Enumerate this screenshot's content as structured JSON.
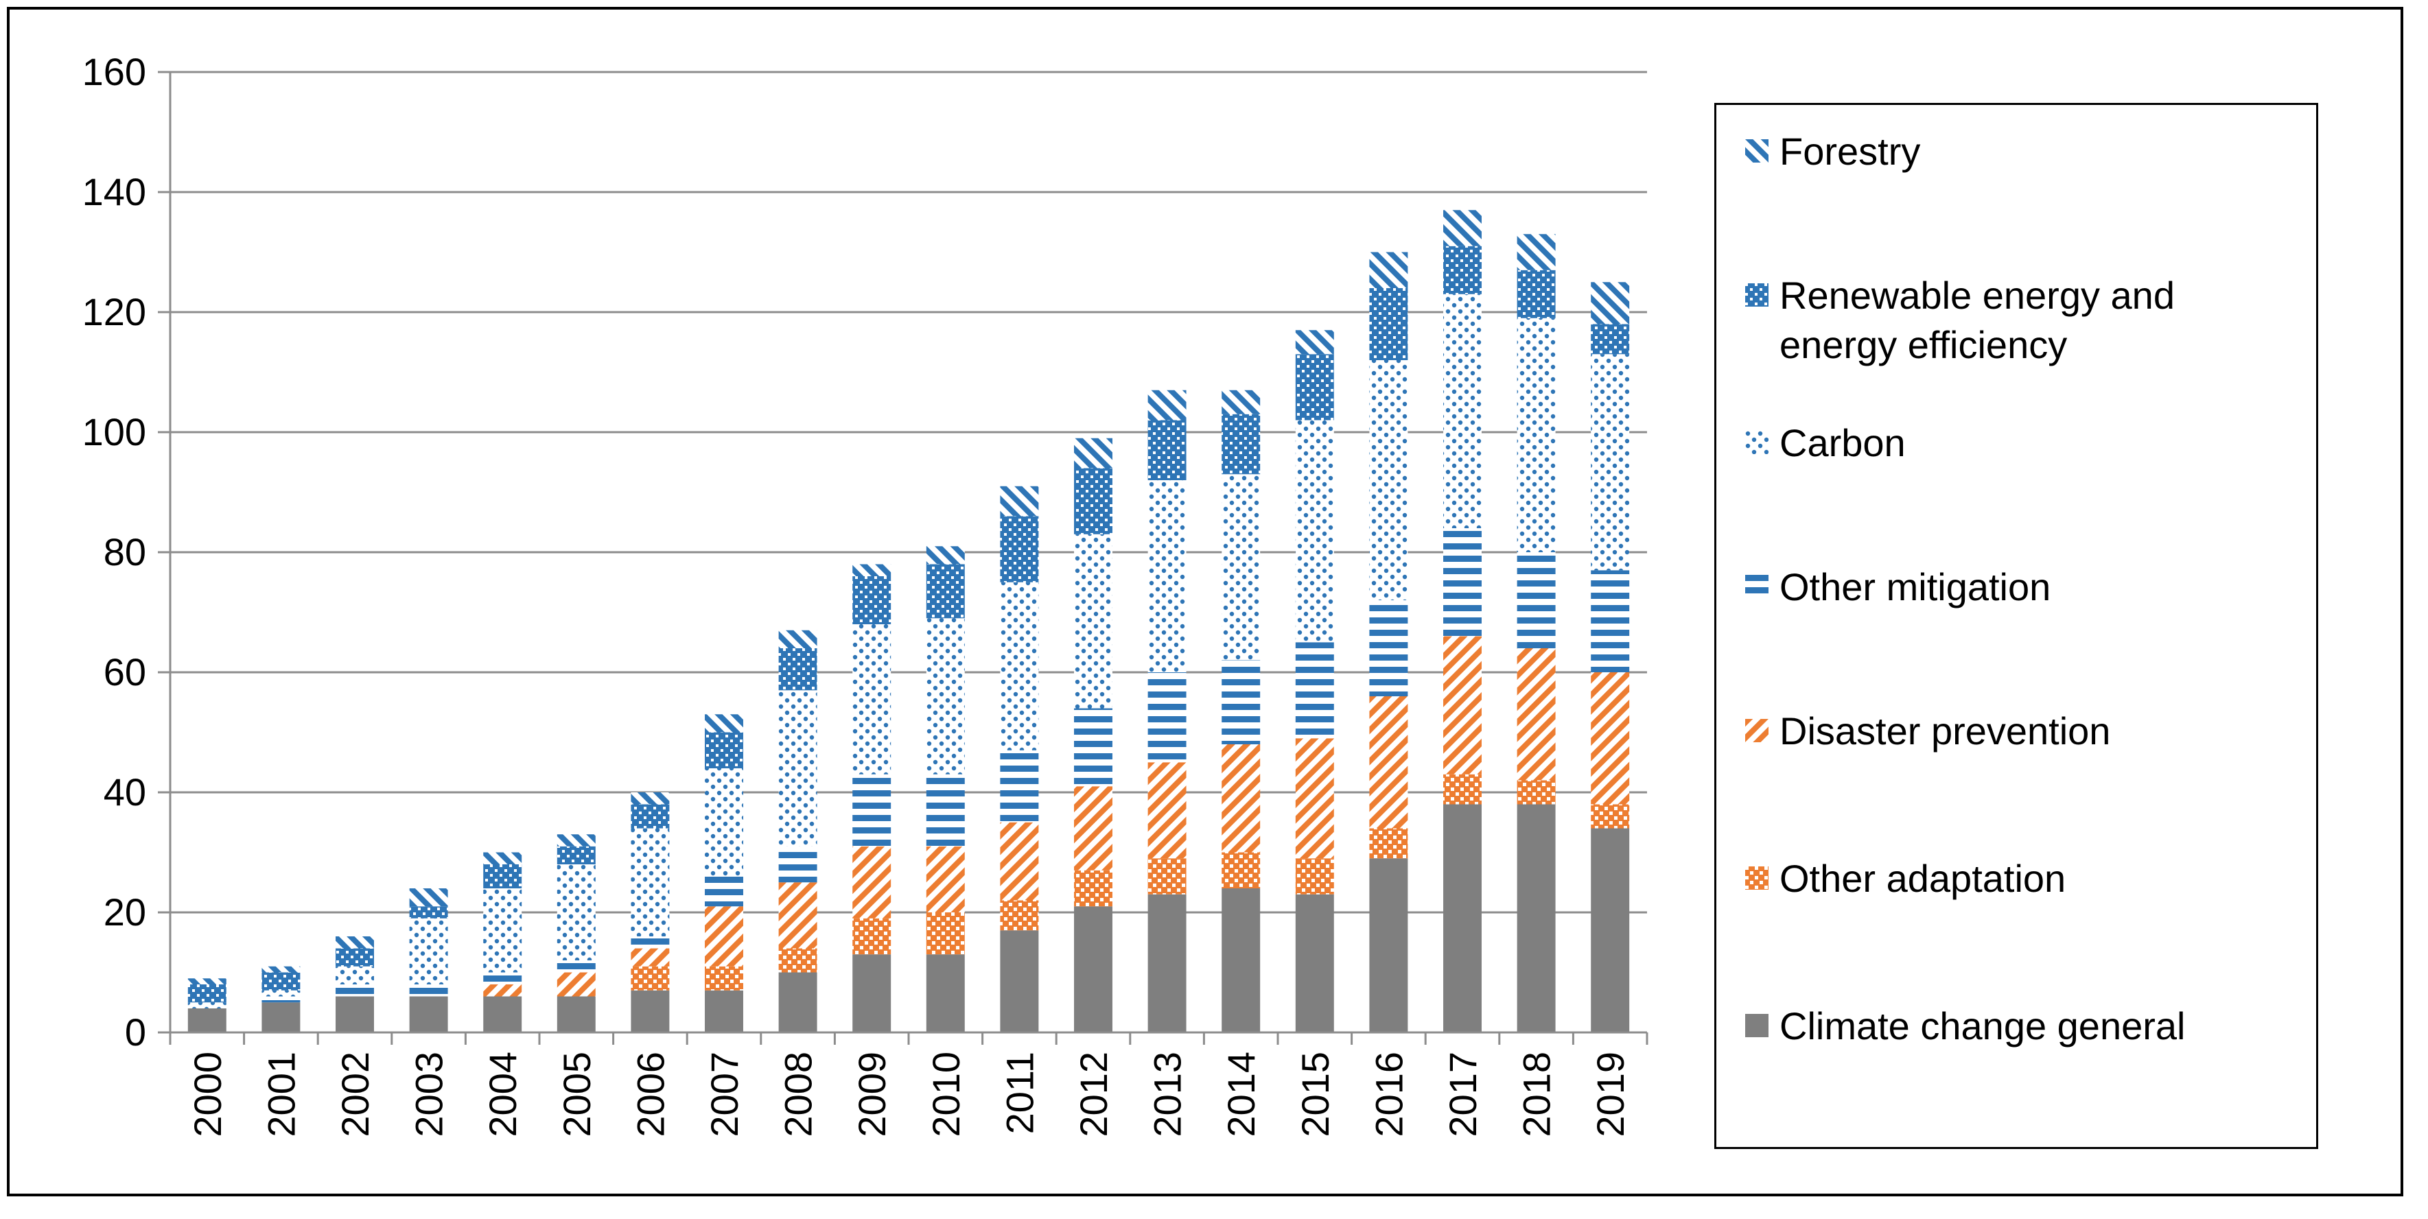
{
  "chart_data": {
    "type": "bar",
    "stacked": true,
    "title": "",
    "xlabel": "",
    "ylabel": "",
    "ylim": [
      0,
      160
    ],
    "yticks": [
      0,
      20,
      40,
      60,
      80,
      100,
      120,
      140,
      160
    ],
    "grid": "horizontal",
    "legend_position": "right",
    "categories": [
      "2000",
      "2001",
      "2002",
      "2003",
      "2004",
      "2005",
      "2006",
      "2007",
      "2008",
      "2009",
      "2010",
      "2011",
      "2012",
      "2013",
      "2014",
      "2015",
      "2016",
      "2017",
      "2018",
      "2019"
    ],
    "series": [
      {
        "name": "Climate change general",
        "pattern": "solid-gray",
        "color": "#7f7f7f",
        "values": [
          4,
          5,
          6,
          6,
          6,
          6,
          7,
          7,
          10,
          13,
          13,
          17,
          21,
          23,
          24,
          23,
          29,
          38,
          38,
          34
        ]
      },
      {
        "name": "Other adaptation",
        "pattern": "dots-orange",
        "color": "#ed7d31",
        "values": [
          0,
          0,
          0,
          0,
          0,
          0,
          4,
          4,
          4,
          6,
          7,
          5,
          6,
          6,
          6,
          6,
          5,
          5,
          4,
          4
        ]
      },
      {
        "name": "Disaster prevention",
        "pattern": "diagonal-orange",
        "color": "#ed7d31",
        "values": [
          0,
          0,
          0,
          0,
          2,
          4,
          3,
          10,
          11,
          12,
          11,
          13,
          14,
          16,
          18,
          20,
          22,
          23,
          22,
          22
        ]
      },
      {
        "name": "Other mitigation",
        "pattern": "horizontal-blue",
        "color": "#2e75b6",
        "values": [
          0,
          1,
          2,
          2,
          2,
          2,
          2,
          5,
          6,
          12,
          12,
          12,
          13,
          15,
          14,
          16,
          16,
          18,
          16,
          17
        ]
      },
      {
        "name": "Carbon",
        "pattern": "dots-blue",
        "color": "#2e75b6",
        "values": [
          1,
          1,
          3,
          11,
          14,
          16,
          18,
          18,
          26,
          25,
          26,
          28,
          29,
          32,
          31,
          37,
          40,
          39,
          39,
          36
        ]
      },
      {
        "name": "Renewable energy and energy efficiency",
        "pattern": "checker-blue",
        "color": "#2e75b6",
        "values": [
          3,
          3,
          3,
          2,
          4,
          3,
          4,
          6,
          7,
          8,
          9,
          11,
          11,
          10,
          10,
          11,
          12,
          8,
          8,
          5
        ]
      },
      {
        "name": "Forestry",
        "pattern": "diagonal-blue",
        "color": "#2e75b6",
        "values": [
          1,
          1,
          2,
          3,
          2,
          2,
          2,
          3,
          3,
          2,
          3,
          5,
          5,
          5,
          4,
          4,
          6,
          6,
          6,
          7
        ]
      }
    ]
  },
  "legend": {
    "items": [
      {
        "label": "Forestry",
        "pattern": "diagonal-blue"
      },
      {
        "label": "Renewable energy and energy efficiency",
        "pattern": "checker-blue"
      },
      {
        "label": "Carbon",
        "pattern": "dots-blue"
      },
      {
        "label": "Other mitigation",
        "pattern": "horizontal-blue"
      },
      {
        "label": "Disaster prevention",
        "pattern": "diagonal-orange"
      },
      {
        "label": "Other adaptation",
        "pattern": "dots-orange"
      },
      {
        "label": "Climate change general",
        "pattern": "solid-gray"
      }
    ]
  }
}
